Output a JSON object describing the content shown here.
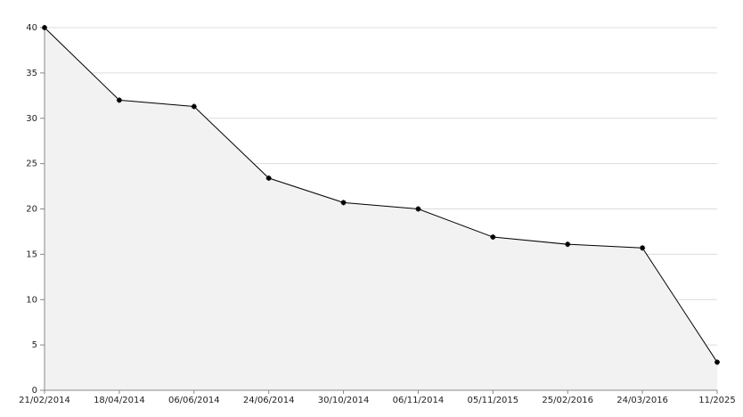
{
  "chart_data": {
    "type": "area",
    "categories": [
      "21/02/2014",
      "18/04/2014",
      "06/06/2014",
      "24/06/2014",
      "30/10/2014",
      "06/11/2014",
      "05/11/2015",
      "25/02/2016",
      "24/03/2016",
      "11/2025"
    ],
    "values": [
      40,
      32,
      31.3,
      23.4,
      20.7,
      20,
      16.9,
      16.1,
      15.7,
      3.1
    ],
    "color": "#000000",
    "fill": "#f2f2f2",
    "ylim": [
      0,
      40
    ],
    "yticks": [
      0,
      5,
      10,
      15,
      20,
      25,
      30,
      35,
      40
    ],
    "grid": true
  }
}
